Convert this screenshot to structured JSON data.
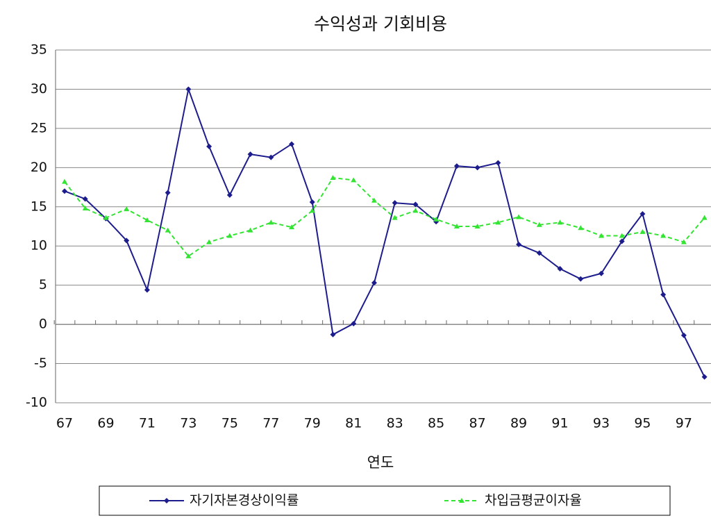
{
  "chart_data": {
    "type": "line",
    "title": "수익성과 기회비용",
    "x_label": "연도",
    "categories": [
      "67",
      null,
      "69",
      null,
      "71",
      null,
      "73",
      null,
      "75",
      null,
      "77",
      null,
      "79",
      null,
      "81",
      null,
      "83",
      null,
      "85",
      null,
      "87",
      null,
      "89",
      null,
      "91",
      null,
      "93",
      null,
      "95",
      null,
      "97",
      null
    ],
    "series": [
      {
        "name": "자기자본경상이익률",
        "color": "#1c1c8c",
        "dashed": false,
        "marker": "diamond",
        "values": [
          17,
          16,
          13.5,
          10.7,
          4.4,
          16.8,
          30,
          22.7,
          16.5,
          21.7,
          21.3,
          23,
          15.6,
          -1.3,
          0.1,
          5.3,
          15.5,
          15.3,
          13.1,
          20.2,
          20,
          20.6,
          10.2,
          9.1,
          7.1,
          5.8,
          6.5,
          10.6,
          14.1,
          3.8,
          -1.4,
          -6.7
        ]
      },
      {
        "name": "차입금평균이자율",
        "color": "#33e433",
        "dashed": true,
        "marker": "triangle",
        "values": [
          18.2,
          14.8,
          13.6,
          14.7,
          13.3,
          12,
          8.7,
          10.5,
          11.3,
          12,
          13,
          12.4,
          14.5,
          18.7,
          18.4,
          15.8,
          13.6,
          14.5,
          13.4,
          12.5,
          12.5,
          13,
          13.7,
          12.7,
          13,
          12.3,
          11.3,
          11.3,
          11.8,
          11.3,
          10.5,
          13.6
        ]
      }
    ],
    "ylim": [
      -10,
      35
    ],
    "yticks": [
      -10,
      -5,
      0,
      5,
      10,
      15,
      20,
      25,
      30,
      35
    ],
    "grid": true,
    "legend": "bottom"
  }
}
